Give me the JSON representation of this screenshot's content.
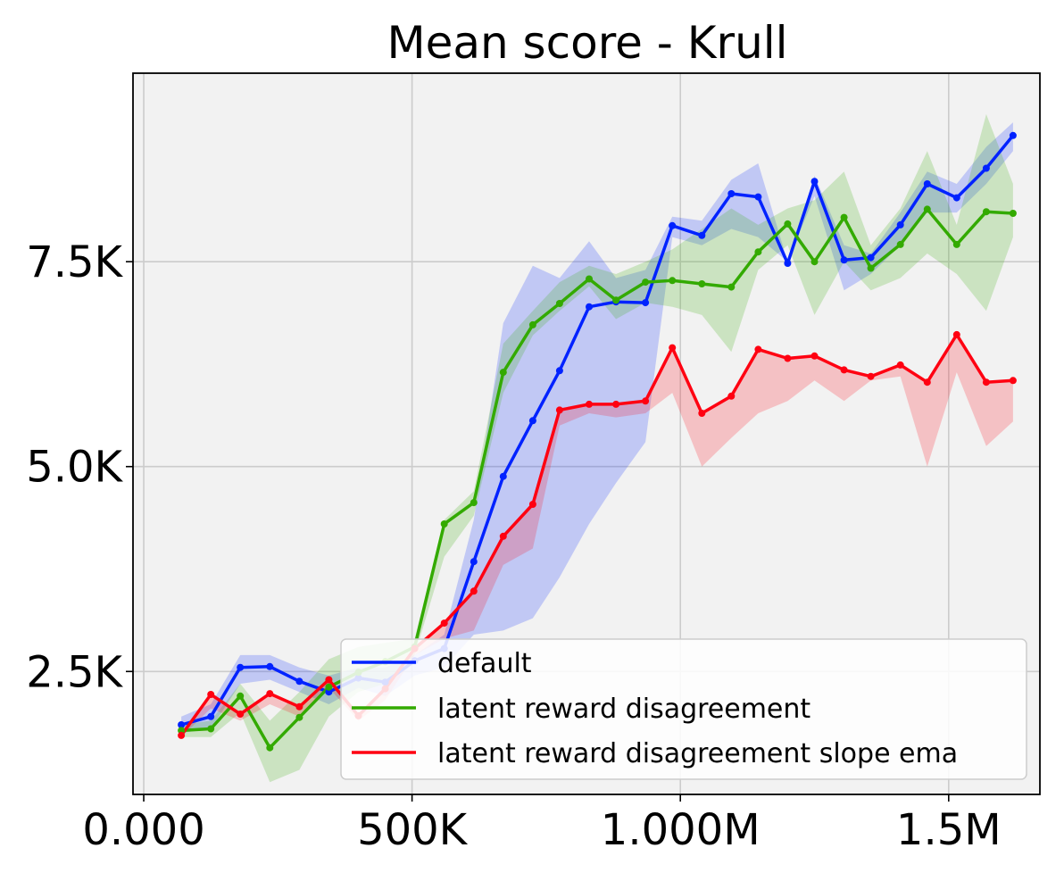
{
  "chart_data": {
    "type": "line",
    "title": "Mean score - Krull",
    "xlabel": "",
    "ylabel": "",
    "xlim": [
      -20000,
      1670000
    ],
    "ylim": [
      1000,
      9800
    ],
    "grid": true,
    "legend_position": "bottom-right",
    "x_ticks": [
      {
        "value": 0,
        "label": "0.000"
      },
      {
        "value": 500000,
        "label": "500K"
      },
      {
        "value": 1000000,
        "label": "1.000M"
      },
      {
        "value": 1500000,
        "label": "1.5M"
      }
    ],
    "y_ticks": [
      {
        "value": 2500,
        "label": "2.5K"
      },
      {
        "value": 5000,
        "label": "5.0K"
      },
      {
        "value": 7500,
        "label": "7.5K"
      }
    ],
    "x": [
      70000,
      125000,
      180000,
      235000,
      290000,
      345000,
      400000,
      450000,
      505000,
      560000,
      615000,
      670000,
      725000,
      775000,
      830000,
      880000,
      935000,
      985000,
      1040000,
      1095000,
      1145000,
      1200000,
      1250000,
      1305000,
      1355000,
      1410000,
      1460000,
      1515000,
      1570000,
      1620000
    ],
    "series": [
      {
        "name": "default",
        "color": "#0022ff",
        "values": [
          1850,
          1950,
          2550,
          2560,
          2380,
          2250,
          2420,
          2370,
          2630,
          2780,
          3840,
          4880,
          5560,
          6170,
          6950,
          7010,
          7000,
          7940,
          7820,
          8330,
          8290,
          7480,
          8480,
          7520,
          7550,
          7950,
          8450,
          8280,
          8640,
          9040
        ],
        "lower": [
          1750,
          1800,
          2350,
          2400,
          2250,
          2100,
          2300,
          2200,
          2450,
          2550,
          2950,
          3000,
          3150,
          3650,
          4300,
          4800,
          5300,
          7800,
          7700,
          7900,
          7800,
          7500,
          8300,
          7150,
          7350,
          7700,
          8100,
          8100,
          8450,
          8850
        ],
        "upper": [
          1950,
          2100,
          2700,
          2700,
          2550,
          2450,
          2550,
          2550,
          2700,
          2950,
          4350,
          6750,
          7450,
          7300,
          7750,
          7300,
          7400,
          8050,
          8000,
          8500,
          8700,
          7500,
          8550,
          7700,
          7600,
          8100,
          8600,
          8450,
          8900,
          9200
        ]
      },
      {
        "name": "latent reward disagreement",
        "color": "#33aa00",
        "values": [
          1780,
          1800,
          2200,
          1570,
          1940,
          2310,
          2490,
          2620,
          2800,
          4300,
          4560,
          6150,
          6730,
          6990,
          7290,
          7030,
          7250,
          7270,
          7230,
          7190,
          7620,
          7960,
          7500,
          8040,
          7420,
          7710,
          8140,
          7710,
          8110,
          8090
        ],
        "lower": [
          1700,
          1700,
          2000,
          1150,
          1300,
          1950,
          2250,
          2350,
          2700,
          3900,
          4400,
          5900,
          6600,
          6900,
          7200,
          6800,
          7000,
          6950,
          6850,
          6400,
          7400,
          7700,
          6850,
          7500,
          7150,
          7300,
          7600,
          7350,
          6900,
          7800
        ],
        "upper": [
          1850,
          1900,
          2350,
          1900,
          2250,
          2650,
          2800,
          2850,
          2900,
          4350,
          4700,
          6500,
          6900,
          7250,
          7450,
          7350,
          7500,
          7650,
          7900,
          8150,
          7950,
          8150,
          8250,
          8600,
          7700,
          8150,
          8850,
          7950,
          9300,
          8450
        ]
      },
      {
        "name": "latent reward disagreement slope ema",
        "color": "#ff0011",
        "values": [
          1720,
          2220,
          1980,
          2230,
          2070,
          2400,
          1960,
          2290,
          2780,
          3090,
          3480,
          4150,
          4540,
          5690,
          5760,
          5760,
          5800,
          6450,
          5650,
          5860,
          6430,
          6320,
          6350,
          6180,
          6100,
          6240,
          6030,
          6610,
          6030,
          6050
        ],
        "lower": [
          1700,
          2050,
          1900,
          2100,
          1950,
          2300,
          1900,
          2150,
          2700,
          2900,
          3000,
          3800,
          4000,
          5500,
          5650,
          5600,
          5650,
          5900,
          5000,
          5350,
          5650,
          5800,
          6050,
          5800,
          6050,
          6100,
          5000,
          6150,
          5250,
          5550
        ]
      }
    ]
  },
  "legend": {
    "items": [
      {
        "label": "default",
        "color": "#0022ff"
      },
      {
        "label": "latent reward disagreement",
        "color": "#33aa00"
      },
      {
        "label": "latent reward disagreement slope ema",
        "color": "#ff0011"
      }
    ]
  }
}
